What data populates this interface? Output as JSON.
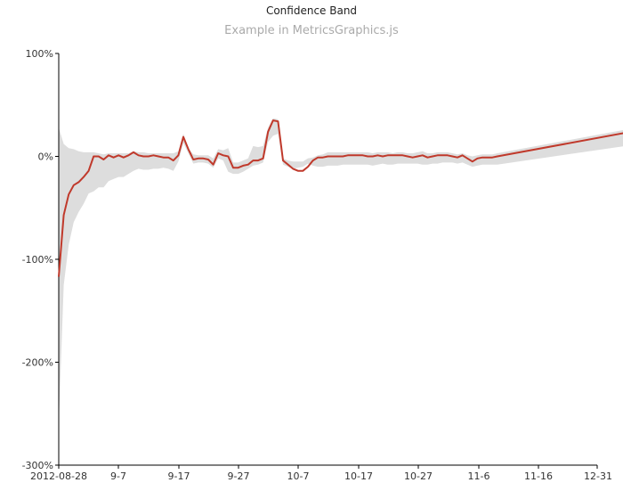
{
  "chart_data": {
    "type": "line",
    "title": "Confidence Band",
    "subtitle": "Example in MetricsGraphics.js",
    "xlabel": "",
    "ylabel": "",
    "x_tick_labels": [
      "2012-08-28",
      "9-7",
      "9-17",
      "9-27",
      "10-7",
      "10-17",
      "10-27",
      "11-6",
      "11-16",
      "12-31"
    ],
    "y_tick_labels": [
      "100%",
      "0%",
      "-100%",
      "-200%",
      "-300%"
    ],
    "y_ticks": [
      100,
      0,
      -100,
      -200,
      -300
    ],
    "ylim": [
      -300,
      100
    ],
    "xlim": [
      "2012-08-28",
      "2012-12-31"
    ],
    "band_color": "#dddddd",
    "line_color": "#c0392b",
    "series": [
      {
        "x": [
          "2012-08-28",
          "2012-08-29",
          "2012-08-30",
          "2012-08-31",
          "2012-09-01",
          "2012-09-02",
          "2012-09-03",
          "2012-09-04",
          "2012-09-05",
          "2012-09-06",
          "2012-09-07",
          "2012-09-08",
          "2012-09-09",
          "2012-09-10",
          "2012-09-11",
          "2012-09-12",
          "2012-09-13",
          "2012-09-14",
          "2012-09-15",
          "2012-09-16",
          "2012-09-17",
          "2012-09-18",
          "2012-09-19",
          "2012-09-20",
          "2012-09-21",
          "2012-09-22",
          "2012-09-23",
          "2012-09-24",
          "2012-09-25",
          "2012-09-26",
          "2012-09-27",
          "2012-09-28",
          "2012-09-29",
          "2012-09-30",
          "2012-10-01",
          "2012-10-02",
          "2012-10-03",
          "2012-10-04",
          "2012-10-05",
          "2012-10-06",
          "2012-10-07",
          "2012-10-08",
          "2012-10-09",
          "2012-10-10",
          "2012-10-11",
          "2012-10-12",
          "2012-10-13",
          "2012-10-14",
          "2012-10-15",
          "2012-10-16",
          "2012-10-17",
          "2012-10-18",
          "2012-10-19",
          "2012-10-20",
          "2012-10-21",
          "2012-10-22",
          "2012-10-23",
          "2012-10-24",
          "2012-10-25",
          "2012-10-26",
          "2012-10-27",
          "2012-10-28",
          "2012-10-29",
          "2012-10-30",
          "2012-10-31",
          "2012-11-01",
          "2012-11-02",
          "2012-11-03",
          "2012-11-04",
          "2012-11-05",
          "2012-11-06",
          "2012-11-07",
          "2012-11-08",
          "2012-11-09",
          "2012-11-10",
          "2012-11-11",
          "2012-11-12",
          "2012-11-13",
          "2012-11-14",
          "2012-11-15",
          "2012-11-16",
          "2012-11-17",
          "2012-11-18",
          "2012-11-19",
          "2012-11-20",
          "2012-11-21",
          "2012-11-22",
          "2012-11-23",
          "2012-11-24",
          "2012-12-31"
        ],
        "value": [
          -117,
          -57,
          -37,
          -28,
          -25,
          -20,
          -14,
          0,
          0,
          -3,
          1,
          -1,
          1,
          -1,
          1,
          4,
          1,
          0,
          0,
          1,
          0,
          -1,
          -1,
          -4,
          1,
          19,
          7,
          -3,
          -2,
          -2,
          -3,
          -8,
          3,
          1,
          0,
          -11,
          -11,
          -9,
          -8,
          -4,
          -4,
          -2,
          24,
          35,
          34,
          -4,
          -8,
          -12,
          -14,
          -14,
          -10,
          -4,
          -1,
          -1,
          0,
          0,
          0,
          0,
          1,
          1,
          1,
          1,
          0,
          0,
          1,
          0,
          1,
          1,
          1,
          1,
          0,
          -1,
          0,
          1,
          -1,
          0,
          1,
          1,
          1,
          0,
          -1,
          1,
          -2,
          -5,
          -2,
          -1,
          -1,
          -1,
          0,
          33
        ],
        "lower": [
          -260,
          -125,
          -86,
          -64,
          -54,
          -46,
          -36,
          -34,
          -30,
          -30,
          -24,
          -22,
          -20,
          -20,
          -17,
          -14,
          -12,
          -13,
          -13,
          -12,
          -12,
          -11,
          -12,
          -14,
          -5,
          13,
          3,
          -7,
          -6,
          -6,
          -7,
          -11,
          -2,
          -4,
          -15,
          -17,
          -17,
          -15,
          -12,
          -9,
          -8,
          -6,
          14,
          20,
          22,
          -8,
          -10,
          -12,
          -11,
          -10,
          -7,
          -9,
          -10,
          -10,
          -9,
          -9,
          -9,
          -8,
          -8,
          -8,
          -8,
          -8,
          -8,
          -9,
          -8,
          -7,
          -8,
          -8,
          -7,
          -7,
          -7,
          -7,
          -7,
          -8,
          -8,
          -7,
          -7,
          -6,
          -6,
          -6,
          -7,
          -6,
          -8,
          -10,
          -9,
          -8,
          -8,
          -8,
          -8,
          18
        ],
        "upper": [
          28,
          12,
          8,
          7,
          5,
          4,
          4,
          4,
          3,
          2,
          3,
          3,
          3,
          3,
          3,
          5,
          4,
          4,
          3,
          3,
          3,
          3,
          3,
          3,
          5,
          22,
          8,
          2,
          1,
          1,
          1,
          -2,
          7,
          6,
          8,
          -6,
          -6,
          -4,
          -2,
          10,
          9,
          10,
          28,
          37,
          36,
          -2,
          -4,
          -5,
          -5,
          -5,
          -2,
          -1,
          1,
          2,
          4,
          4,
          4,
          4,
          4,
          4,
          4,
          4,
          4,
          3,
          4,
          4,
          4,
          3,
          4,
          4,
          3,
          3,
          4,
          5,
          3,
          3,
          4,
          4,
          4,
          3,
          2,
          3,
          1,
          0,
          1,
          2,
          2,
          2,
          3,
          36
        ]
      }
    ]
  }
}
